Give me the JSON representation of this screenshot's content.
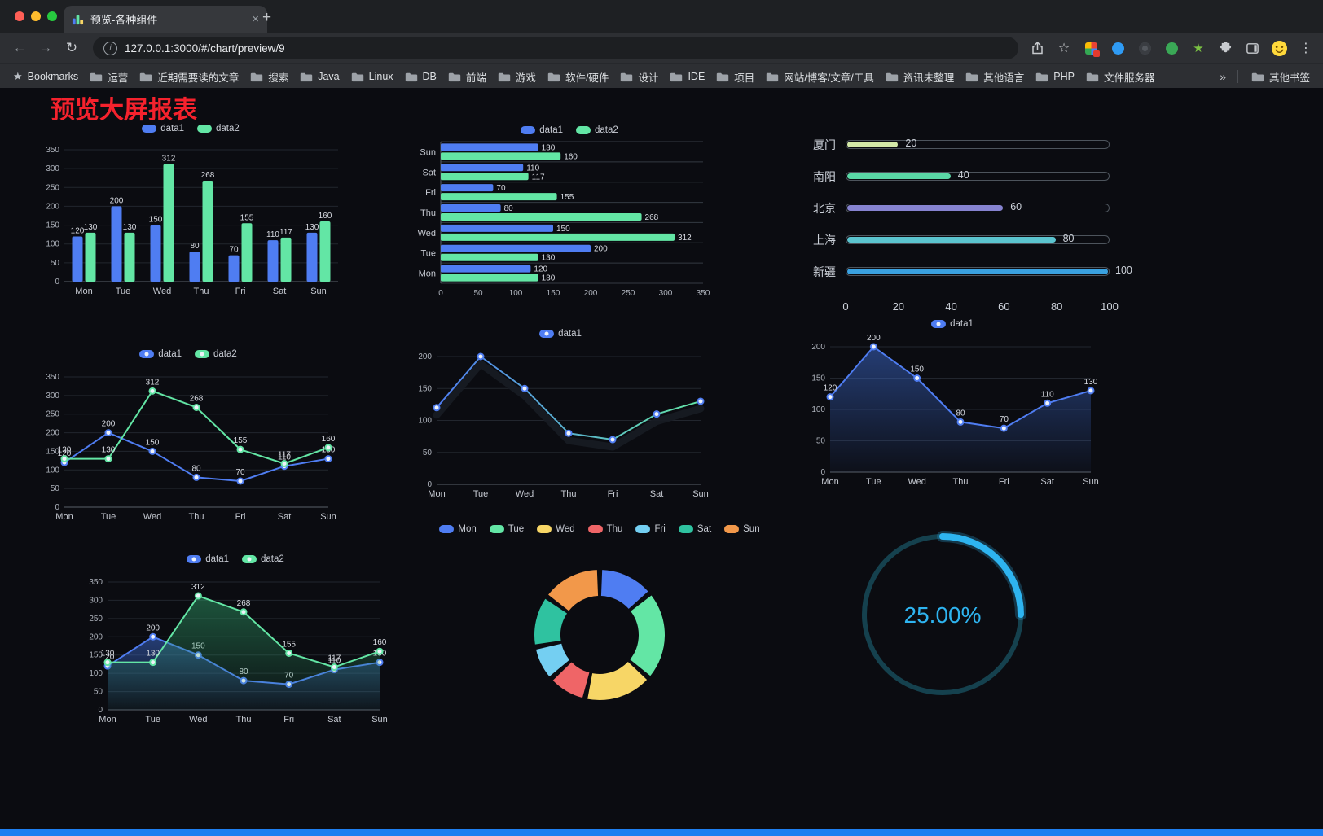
{
  "window": {
    "tab": {
      "title": "预览-各种组件"
    },
    "address": {
      "url": "127.0.0.1:3000/#/chart/preview/9"
    },
    "bookmarks": {
      "label": "Bookmarks",
      "items": [
        "运营",
        "近期需要读的文章",
        "搜索",
        "Java",
        "Linux",
        "DB",
        "前端",
        "游戏",
        "软件/硬件",
        "设计",
        "IDE",
        "项目",
        "网站/博客/文章/工具",
        "资讯未整理",
        "其他语言",
        "PHP",
        "文件服务器"
      ],
      "other": "其他书签"
    }
  },
  "icons": {
    "back": "←",
    "forward": "→",
    "reload": "↻",
    "close": "×",
    "new_tab": "+",
    "kebab": "⋮",
    "star": "☆",
    "bookmarks_star": "★",
    "overflow": "»",
    "info": "i"
  },
  "page": {
    "title": "预览大屏报表",
    "title_color": "#f5222d",
    "accent": "#1f7ff0"
  },
  "chart_data": [
    {
      "id": "bar-grouped",
      "type": "bar",
      "legend": [
        {
          "name": "data1",
          "color": "#4f7df2"
        },
        {
          "name": "data2",
          "color": "#63e6a5"
        }
      ],
      "categories": [
        "Mon",
        "Tue",
        "Wed",
        "Thu",
        "Fri",
        "Sat",
        "Sun"
      ],
      "series": [
        {
          "name": "data1",
          "color": "#4f7df2",
          "values": [
            120,
            200,
            150,
            80,
            70,
            110,
            130
          ]
        },
        {
          "name": "data2",
          "color": "#63e6a5",
          "values": [
            130,
            130,
            312,
            268,
            155,
            117,
            160
          ]
        }
      ],
      "ylim": [
        0,
        350
      ],
      "yticks": [
        0,
        50,
        100,
        150,
        200,
        250,
        300,
        350
      ],
      "show_labels": true
    },
    {
      "id": "hbar-grouped",
      "type": "hbar",
      "legend": [
        {
          "name": "data1",
          "color": "#4f7df2"
        },
        {
          "name": "data2",
          "color": "#63e6a5"
        }
      ],
      "categories": [
        "Mon",
        "Tue",
        "Wed",
        "Thu",
        "Fri",
        "Sat",
        "Sun"
      ],
      "series": [
        {
          "name": "data1",
          "color": "#4f7df2",
          "values": [
            120,
            200,
            150,
            80,
            70,
            110,
            130
          ]
        },
        {
          "name": "data2",
          "color": "#63e6a5",
          "values": [
            130,
            130,
            312,
            268,
            155,
            117,
            160
          ]
        }
      ],
      "xlim": [
        0,
        350
      ],
      "xticks": [
        0,
        50,
        100,
        150,
        200,
        250,
        300,
        350
      ],
      "show_labels": true
    },
    {
      "id": "city-progress",
      "type": "progress",
      "max": 100,
      "rows": [
        {
          "label": "厦门",
          "value": 20,
          "color": "#d4e9a8"
        },
        {
          "label": "南阳",
          "value": 40,
          "color": "#5ad8a6"
        },
        {
          "label": "北京",
          "value": 60,
          "color": "#8683d0"
        },
        {
          "label": "上海",
          "value": 80,
          "color": "#5bc4cf"
        },
        {
          "label": "新疆",
          "value": 100,
          "color": "#3aa1e0"
        }
      ],
      "axis_ticks": [
        0,
        20,
        40,
        60,
        80,
        100
      ]
    },
    {
      "id": "line-two",
      "type": "line",
      "legend": [
        {
          "name": "data1",
          "color": "#4f7df2"
        },
        {
          "name": "data2",
          "color": "#63e6a5"
        }
      ],
      "categories": [
        "Mon",
        "Tue",
        "Wed",
        "Thu",
        "Fri",
        "Sat",
        "Sun"
      ],
      "series": [
        {
          "name": "data1",
          "color": "#4f7df2",
          "values": [
            120,
            200,
            150,
            80,
            70,
            110,
            130
          ]
        },
        {
          "name": "data2",
          "color": "#63e6a5",
          "values": [
            130,
            130,
            312,
            268,
            155,
            117,
            160
          ]
        }
      ],
      "ylim": [
        0,
        350
      ],
      "yticks": [
        0,
        50,
        100,
        150,
        200,
        250,
        300,
        350
      ],
      "show_labels": true
    },
    {
      "id": "line-gradient",
      "type": "line",
      "legend": [
        {
          "name": "data1",
          "color": "#4f7df2"
        }
      ],
      "categories": [
        "Mon",
        "Tue",
        "Wed",
        "Thu",
        "Fri",
        "Sat",
        "Sun"
      ],
      "series": [
        {
          "name": "data1",
          "color": "#4f7df2",
          "gradient": [
            "#4f7df2",
            "#63e6a5"
          ],
          "shadow": true,
          "values": [
            120,
            200,
            150,
            80,
            70,
            110,
            130
          ]
        }
      ],
      "ylim": [
        0,
        200
      ],
      "yticks": [
        0,
        50,
        100,
        150,
        200
      ],
      "show_labels": false
    },
    {
      "id": "line-area",
      "type": "line",
      "legend": [
        {
          "name": "data1",
          "color": "#4f7df2"
        }
      ],
      "categories": [
        "Mon",
        "Tue",
        "Wed",
        "Thu",
        "Fri",
        "Sat",
        "Sun"
      ],
      "series": [
        {
          "name": "data1",
          "color": "#4f7df2",
          "area": true,
          "area_from": "#3f6fd8",
          "values": [
            120,
            200,
            150,
            80,
            70,
            110,
            130
          ]
        }
      ],
      "ylim": [
        0,
        200
      ],
      "yticks": [
        0,
        50,
        100,
        150,
        200
      ],
      "show_labels": true
    },
    {
      "id": "line-area-two",
      "type": "line",
      "legend": [
        {
          "name": "data1",
          "color": "#4f7df2"
        },
        {
          "name": "data2",
          "color": "#63e6a5"
        }
      ],
      "categories": [
        "Mon",
        "Tue",
        "Wed",
        "Thu",
        "Fri",
        "Sat",
        "Sun"
      ],
      "series": [
        {
          "name": "data1",
          "color": "#4f7df2",
          "area": true,
          "area_from": "#3f6fd8",
          "values": [
            120,
            200,
            150,
            80,
            70,
            110,
            130
          ]
        },
        {
          "name": "data2",
          "color": "#63e6a5",
          "area": true,
          "area_from": "#2f9e68",
          "values": [
            130,
            130,
            312,
            268,
            155,
            117,
            160
          ]
        }
      ],
      "ylim": [
        0,
        350
      ],
      "yticks": [
        0,
        50,
        100,
        150,
        200,
        250,
        300,
        350
      ],
      "show_labels": true
    },
    {
      "id": "weekday-donut",
      "type": "donut",
      "categories": [
        "Mon",
        "Tue",
        "Wed",
        "Thu",
        "Fri",
        "Sat",
        "Sun"
      ],
      "values": [
        120,
        200,
        150,
        80,
        70,
        110,
        130
      ],
      "colors": [
        "#4f7df2",
        "#63e6a5",
        "#f7d666",
        "#ef6567",
        "#74cff2",
        "#2fc2a0",
        "#f2984a"
      ]
    },
    {
      "id": "percent-gauge",
      "type": "gauge",
      "value": 25,
      "display": "25.00%",
      "color": "#2eb4f0",
      "track_color": "#15414e"
    }
  ]
}
